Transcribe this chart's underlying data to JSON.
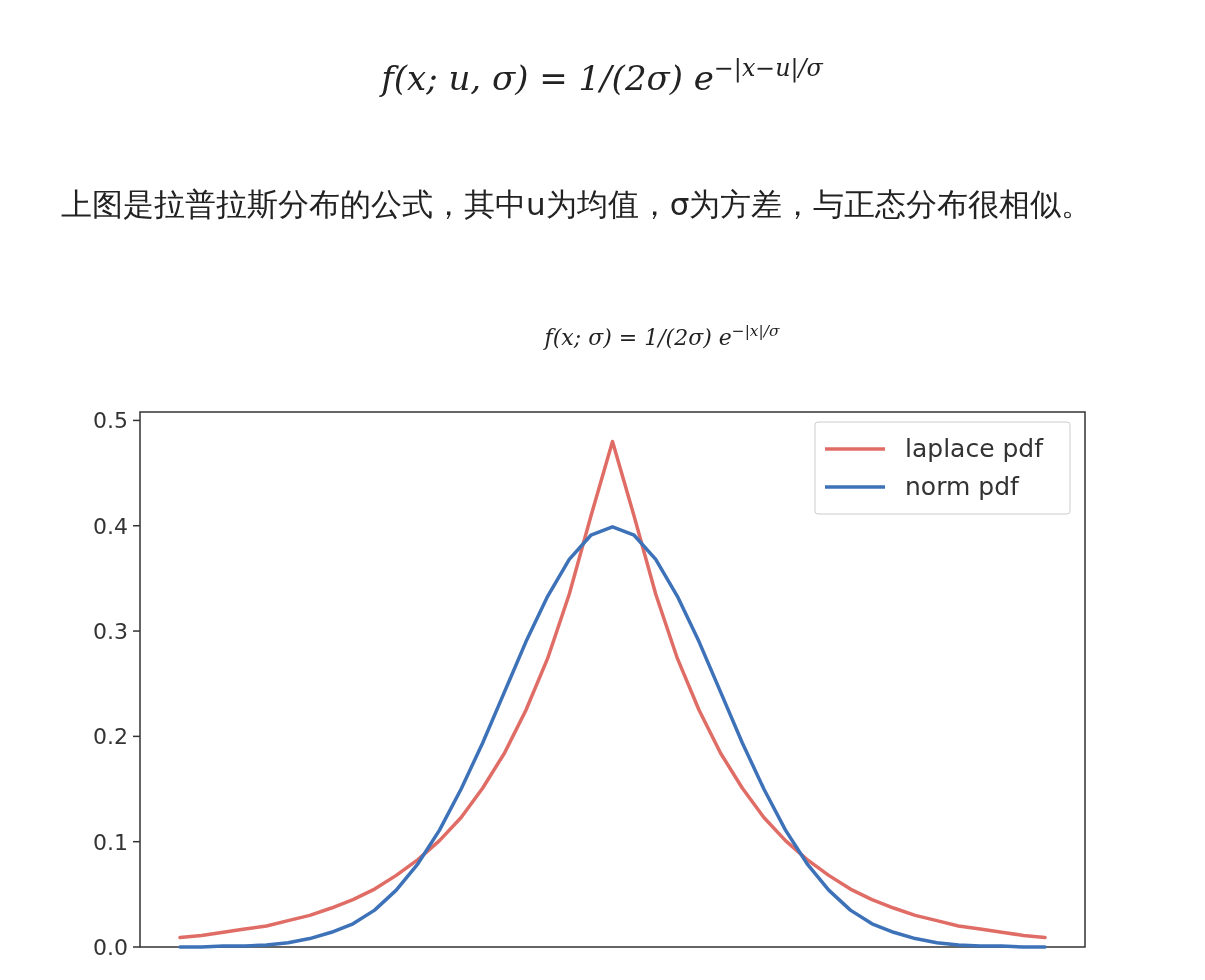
{
  "chart_data": {
    "type": "line",
    "title": "f(x; σ) = 1/(2σ) e$^{−|x|/σ}$",
    "annotations": [
      "f(x; u, σ) = 1/(2σ) e$^{−|x−u|/σ}$",
      "上图是拉普拉斯分布的公式，其中u为均值，σ为方差，与正态分布很相似。"
    ],
    "categories": [
      null,
      null,
      null,
      null,
      null,
      null,
      null,
      null,
      null,
      null,
      null,
      null,
      null,
      null,
      null,
      null,
      null,
      null,
      null,
      null,
      null,
      null,
      null,
      null,
      null,
      null,
      null,
      null,
      null,
      null,
      null,
      null,
      null,
      null,
      null,
      null,
      null,
      null,
      null,
      null,
      null
    ],
    "series": [
      {
        "name": "laplace pdf",
        "color": "#e06c66",
        "values": [
          0.009,
          0.011,
          0.014,
          0.017,
          0.02,
          0.025,
          0.03,
          0.037,
          0.045,
          0.055,
          0.068,
          0.083,
          0.101,
          0.123,
          0.151,
          0.184,
          0.225,
          0.274,
          0.335,
          0.409,
          0.48,
          0.409,
          0.335,
          0.274,
          0.225,
          0.184,
          0.151,
          0.123,
          0.101,
          0.083,
          0.068,
          0.055,
          0.045,
          0.037,
          0.03,
          0.025,
          0.02,
          0.017,
          0.014,
          0.011,
          0.009
        ]
      },
      {
        "name": "norm pdf",
        "color": "#3d72b8",
        "values": [
          0.0,
          0.0,
          0.001,
          0.001,
          0.002,
          0.004,
          0.008,
          0.014,
          0.022,
          0.035,
          0.054,
          0.079,
          0.111,
          0.15,
          0.194,
          0.242,
          0.29,
          0.333,
          0.368,
          0.391,
          0.399,
          0.391,
          0.368,
          0.333,
          0.29,
          0.242,
          0.194,
          0.15,
          0.111,
          0.079,
          0.054,
          0.035,
          0.022,
          0.014,
          0.008,
          0.004,
          0.002,
          0.001,
          0.001,
          0.0,
          0.0
        ]
      }
    ],
    "ylim": [
      0,
      0.508
    ],
    "yticks": [
      {
        "value": 0,
        "label": "0.0"
      },
      {
        "value": 0.1,
        "label": "0.1"
      },
      {
        "value": 0.2,
        "label": "0.2"
      },
      {
        "value": 0.3,
        "label": "0.3"
      },
      {
        "value": 0.4,
        "label": "0.4"
      },
      {
        "value": 0.5,
        "label": "0.5"
      }
    ],
    "tick_labels": "y",
    "legend": "top right"
  }
}
